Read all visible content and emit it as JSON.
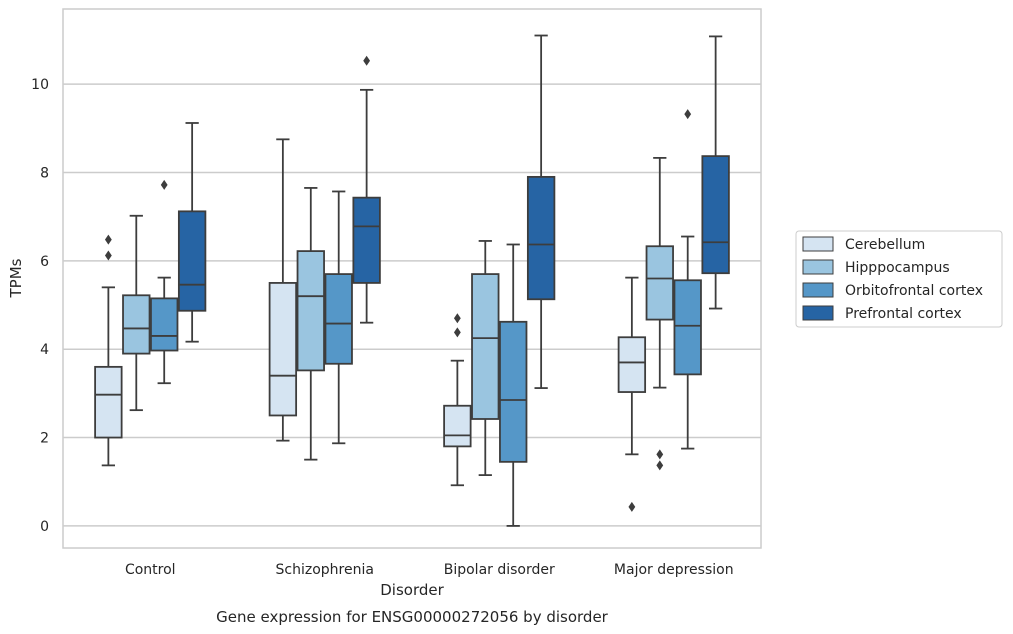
{
  "chart_data": {
    "type": "boxplot",
    "title": "Gene expression for ENSG00000272056 by disorder",
    "xlabel": "Disorder",
    "ylabel": "TPMs",
    "ylim": [
      -0.5,
      11.7
    ],
    "yticks": [
      0,
      2,
      4,
      6,
      8,
      10
    ],
    "grid": true,
    "legend_position": "right",
    "categories": [
      "Control",
      "Schizophrenia",
      "Bipolar disorder",
      "Major depression"
    ],
    "series": [
      {
        "name": "Cerebellum",
        "color": "#d5e4f2",
        "boxes": [
          {
            "whislo": 1.37,
            "q1": 2.0,
            "med": 2.97,
            "q3": 3.6,
            "whishi": 5.4,
            "fliers": [
              6.12,
              6.48
            ]
          },
          {
            "whislo": 1.93,
            "q1": 2.5,
            "med": 3.4,
            "q3": 5.5,
            "whishi": 8.75,
            "fliers": []
          },
          {
            "whislo": 0.92,
            "q1": 1.8,
            "med": 2.05,
            "q3": 2.72,
            "whishi": 3.74,
            "fliers": [
              4.38,
              4.7
            ]
          },
          {
            "whislo": 1.62,
            "q1": 3.03,
            "med": 3.7,
            "q3": 4.27,
            "whishi": 5.62,
            "fliers": [
              0.43
            ]
          }
        ]
      },
      {
        "name": "Hipppocampus",
        "color": "#9ac5e0",
        "boxes": [
          {
            "whislo": 2.62,
            "q1": 3.9,
            "med": 4.47,
            "q3": 5.22,
            "whishi": 7.02,
            "fliers": []
          },
          {
            "whislo": 1.5,
            "q1": 3.52,
            "med": 5.2,
            "q3": 6.22,
            "whishi": 7.65,
            "fliers": []
          },
          {
            "whislo": 1.15,
            "q1": 2.42,
            "med": 4.25,
            "q3": 5.7,
            "whishi": 6.45,
            "fliers": []
          },
          {
            "whislo": 3.13,
            "q1": 4.67,
            "med": 5.6,
            "q3": 6.33,
            "whishi": 8.33,
            "fliers": [
              1.37,
              1.62
            ]
          }
        ]
      },
      {
        "name": "Orbitofrontal cortex",
        "color": "#5597c8",
        "boxes": [
          {
            "whislo": 3.23,
            "q1": 3.97,
            "med": 4.3,
            "q3": 5.15,
            "whishi": 5.62,
            "fliers": [
              7.72
            ]
          },
          {
            "whislo": 1.87,
            "q1": 3.67,
            "med": 4.58,
            "q3": 5.7,
            "whishi": 7.57,
            "fliers": []
          },
          {
            "whislo": 0.0,
            "q1": 1.45,
            "med": 2.85,
            "q3": 4.62,
            "whishi": 6.37,
            "fliers": []
          },
          {
            "whislo": 1.75,
            "q1": 3.43,
            "med": 4.53,
            "q3": 5.56,
            "whishi": 6.55,
            "fliers": [
              9.32
            ]
          }
        ]
      },
      {
        "name": "Prefrontal cortex",
        "color": "#2664a4",
        "boxes": [
          {
            "whislo": 4.17,
            "q1": 4.87,
            "med": 5.46,
            "q3": 7.12,
            "whishi": 9.12,
            "fliers": []
          },
          {
            "whislo": 4.6,
            "q1": 5.5,
            "med": 6.78,
            "q3": 7.43,
            "whishi": 9.87,
            "fliers": [
              10.53
            ]
          },
          {
            "whislo": 3.12,
            "q1": 5.13,
            "med": 6.37,
            "q3": 7.9,
            "whishi": 11.1,
            "fliers": []
          },
          {
            "whislo": 4.92,
            "q1": 5.72,
            "med": 6.42,
            "q3": 8.37,
            "whishi": 11.08,
            "fliers": []
          }
        ]
      }
    ]
  }
}
